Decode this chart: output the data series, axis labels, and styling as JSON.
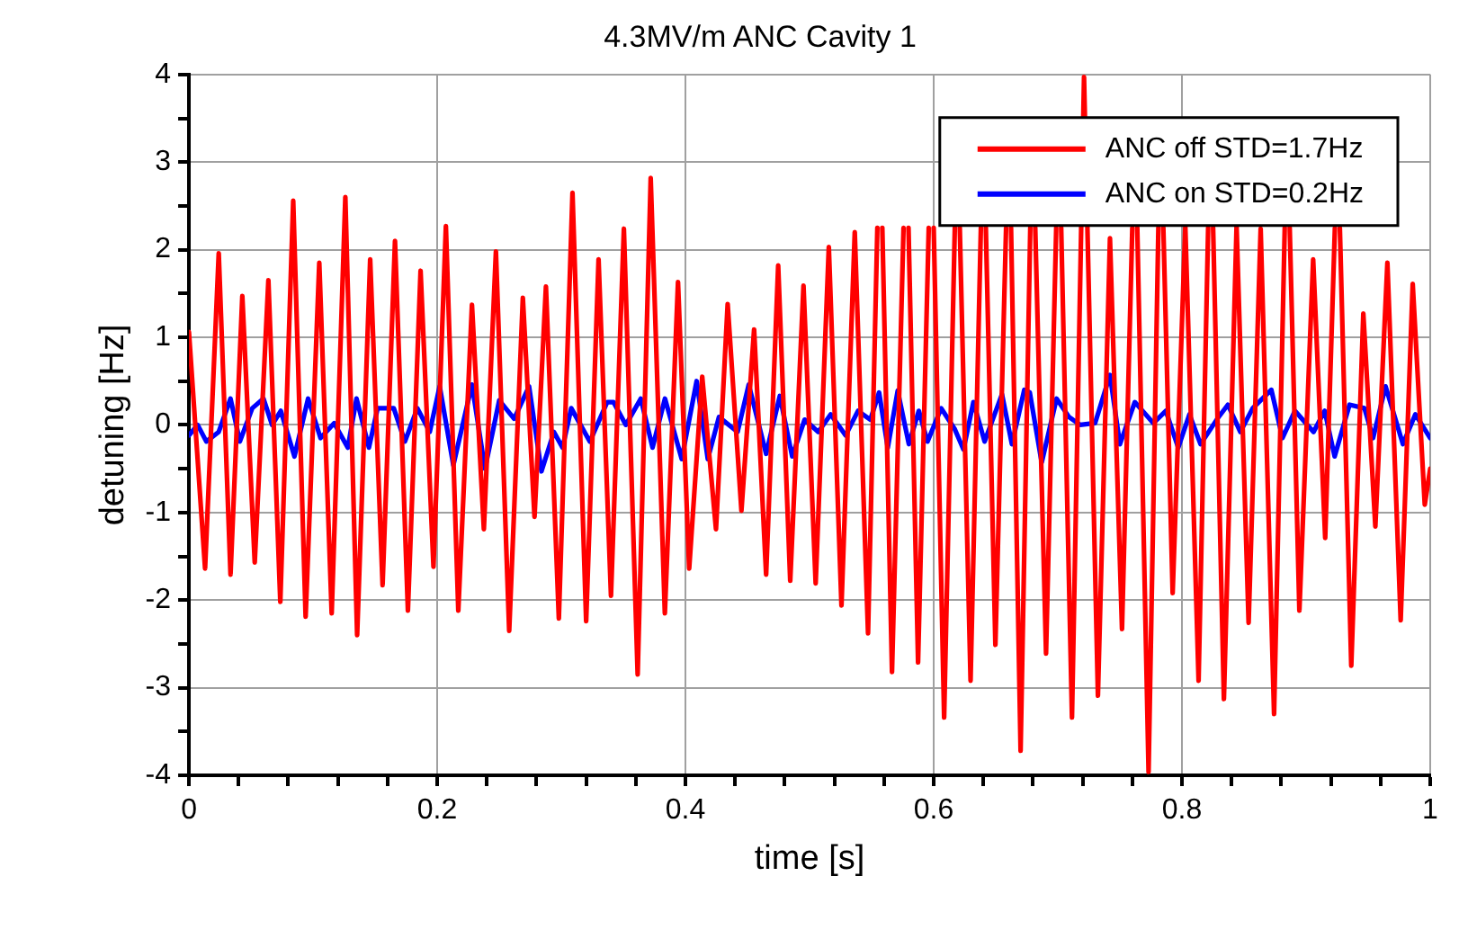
{
  "chart_data": {
    "type": "line",
    "title": "4.3MV/m ANC Cavity 1",
    "xlabel": "time [s]",
    "ylabel": "detuning [Hz]",
    "xlim": [
      0,
      1
    ],
    "ylim": [
      -4,
      4
    ],
    "xticks": [
      0,
      {
        "value": 0.04,
        "label": null
      },
      {
        "value": 0.08,
        "label": null
      },
      {
        "value": 0.12,
        "label": null
      },
      {
        "value": 0.16,
        "label": null
      },
      0.2,
      {
        "value": 0.24,
        "label": null
      },
      {
        "value": 0.28,
        "label": null
      },
      {
        "value": 0.32,
        "label": null
      },
      {
        "value": 0.36,
        "label": null
      },
      0.4,
      {
        "value": 0.44,
        "label": null
      },
      {
        "value": 0.48,
        "label": null
      },
      {
        "value": 0.52,
        "label": null
      },
      {
        "value": 0.56,
        "label": null
      },
      0.6,
      {
        "value": 0.64,
        "label": null
      },
      {
        "value": 0.68,
        "label": null
      },
      {
        "value": 0.72,
        "label": null
      },
      {
        "value": 0.76,
        "label": null
      },
      0.8,
      {
        "value": 0.84,
        "label": null
      },
      {
        "value": 0.88,
        "label": null
      },
      {
        "value": 0.92,
        "label": null
      },
      {
        "value": 0.96,
        "label": null
      },
      1
    ],
    "yticks": [
      -4,
      {
        "value": -3.5,
        "label": null
      },
      -3,
      {
        "value": -2.5,
        "label": null
      },
      -2,
      {
        "value": -1.5,
        "label": null
      },
      -1,
      {
        "value": -0.5,
        "label": null
      },
      0,
      {
        "value": 0.5,
        "label": null
      },
      1,
      {
        "value": 1.5,
        "label": null
      },
      2,
      {
        "value": 2.5,
        "label": null
      },
      3,
      {
        "value": 3.5,
        "label": null
      },
      4
    ],
    "grid": true,
    "legend": "top right",
    "marker": "none",
    "line_style": "solid",
    "series": [
      {
        "name": "ANC off STD=1.7Hz",
        "color": "#ff0000",
        "x": [
          0,
          0.013,
          0.024,
          0.0335,
          0.043,
          0.053,
          0.064,
          0.0736,
          0.084,
          0.094,
          0.105,
          0.115,
          0.126,
          0.1355,
          0.146,
          0.156,
          0.166,
          0.1764,
          0.1866,
          0.197,
          0.207,
          0.217,
          0.228,
          0.2376,
          0.2473,
          0.258,
          0.269,
          0.2784,
          0.2876,
          0.298,
          0.309,
          0.32,
          0.33,
          0.34,
          0.3504,
          0.3615,
          0.372,
          0.3834,
          0.394,
          0.403,
          0.4135,
          0.4246,
          0.434,
          0.4451,
          0.4553,
          0.465,
          0.4747,
          0.4844,
          0.4951,
          0.5049,
          0.5155,
          0.5257,
          0.5364,
          0.5471,
          0.5546,
          0.5566,
          0.5586,
          0.5664,
          0.5757,
          0.5777,
          0.5797,
          0.5874,
          0.596,
          0.598,
          0.6,
          0.6084,
          0.617,
          0.619,
          0.621,
          0.6297,
          0.638,
          0.64,
          0.642,
          0.6497,
          0.6583,
          0.6603,
          0.6623,
          0.67,
          0.6778,
          0.6798,
          0.6818,
          0.6905,
          0.6987,
          0.7007,
          0.7027,
          0.7114,
          0.7211,
          0.7323,
          0.742,
          0.7517,
          0.76,
          0.762,
          0.764,
          0.7731,
          0.781,
          0.783,
          0.785,
          0.7925,
          0.8027,
          0.8134,
          0.8211,
          0.8231,
          0.8251,
          0.8338,
          0.844,
          0.8537,
          0.8634,
          0.8742,
          0.8828,
          0.8848,
          0.8868,
          0.8946,
          0.9057,
          0.9154,
          0.9232,
          0.9252,
          0.9272,
          0.9364,
          0.9461,
          0.9558,
          0.9655,
          0.9762,
          0.9859,
          0.9956,
          1
        ],
        "values": [
          1.06,
          -1.64,
          1.96,
          -1.71,
          1.47,
          -1.57,
          1.65,
          -2.02,
          2.56,
          -2.19,
          1.85,
          -2.15,
          2.6,
          -2.4,
          1.89,
          -1.83,
          2.1,
          -2.12,
          1.76,
          -1.62,
          2.27,
          -2.12,
          1.37,
          -1.19,
          1.98,
          -2.35,
          1.45,
          -1.05,
          1.58,
          -2.21,
          2.65,
          -2.24,
          1.89,
          -1.95,
          2.24,
          -2.85,
          2.82,
          -2.15,
          1.63,
          -1.64,
          0.55,
          -1.19,
          1.38,
          -0.98,
          1.09,
          -1.71,
          1.82,
          -1.78,
          1.59,
          -1.81,
          2.03,
          -2.06,
          2.2,
          -2.38,
          2.25,
          null,
          2.25,
          -2.82,
          2.25,
          null,
          2.25,
          -2.71,
          2.25,
          null,
          2.25,
          -3.34,
          2.25,
          null,
          2.25,
          -2.92,
          2.25,
          null,
          2.25,
          -2.51,
          2.25,
          null,
          2.25,
          -3.72,
          2.25,
          null,
          2.25,
          -2.61,
          2.25,
          null,
          2.25,
          -3.34,
          3.97,
          -3.09,
          2.13,
          -2.33,
          2.25,
          null,
          2.25,
          -3.96,
          2.25,
          null,
          2.25,
          -1.92,
          2.27,
          -2.92,
          2.25,
          null,
          2.25,
          -3.13,
          2.27,
          -2.26,
          2.24,
          -3.3,
          2.25,
          null,
          2.25,
          -2.12,
          1.89,
          -1.29,
          2.25,
          null,
          2.25,
          -2.75,
          1.27,
          -1.16,
          1.85,
          -2.23,
          1.61,
          -0.91,
          -0.5
        ]
      },
      {
        "name": "ANC on STD=0.2Hz",
        "color": "#0000ff",
        "x": [
          0,
          0.007,
          0.014,
          0.024,
          0.0335,
          0.041,
          0.051,
          0.06,
          0.067,
          0.074,
          0.085,
          0.096,
          0.106,
          0.117,
          0.128,
          0.135,
          0.145,
          0.152,
          0.165,
          0.174,
          0.184,
          0.194,
          0.202,
          0.213,
          0.228,
          0.2385,
          0.25,
          0.262,
          0.274,
          0.284,
          0.294,
          0.301,
          0.308,
          0.323,
          0.337,
          0.342,
          0.352,
          0.364,
          0.3735,
          0.3835,
          0.397,
          0.409,
          0.418,
          0.427,
          0.442,
          0.451,
          0.465,
          0.476,
          0.486,
          0.496,
          0.507,
          0.517,
          0.529,
          0.539,
          0.549,
          0.556,
          0.563,
          0.571,
          0.58,
          0.588,
          0.595,
          0.606,
          0.617,
          0.624,
          0.632,
          0.641,
          0.655,
          0.663,
          0.673,
          0.6774,
          0.687,
          0.699,
          0.709,
          0.718,
          0.73,
          0.742,
          0.75,
          0.762,
          0.777,
          0.787,
          0.797,
          0.806,
          0.815,
          0.828,
          0.837,
          0.847,
          0.857,
          0.872,
          0.881,
          0.891,
          0.906,
          0.915,
          0.923,
          0.935,
          0.947,
          0.954,
          0.964,
          0.978,
          0.988,
          1
        ],
        "values": [
          -0.12,
          0,
          -0.19,
          -0.08,
          0.3,
          -0.19,
          0.19,
          0.3,
          0,
          0.16,
          -0.36,
          0.3,
          -0.15,
          0.02,
          -0.26,
          0.3,
          -0.26,
          0.19,
          0.19,
          -0.19,
          0.19,
          -0.08,
          0.44,
          -0.46,
          0.46,
          -0.5,
          0.28,
          0.07,
          0.44,
          -0.53,
          -0.08,
          -0.26,
          0.19,
          -0.19,
          0.26,
          0.26,
          0,
          0.3,
          -0.26,
          0.3,
          -0.39,
          0.5,
          -0.39,
          0.09,
          -0.08,
          0.46,
          -0.33,
          0.33,
          -0.36,
          0.06,
          -0.08,
          0.12,
          -0.12,
          0.16,
          0.06,
          0.37,
          -0.26,
          0.39,
          -0.22,
          0.16,
          -0.19,
          0.19,
          -0.05,
          -0.28,
          0.26,
          -0.19,
          0.35,
          -0.22,
          0.4,
          0.37,
          -0.43,
          0.3,
          0.09,
          0,
          0.02,
          0.57,
          -0.22,
          0.26,
          0.02,
          0.16,
          -0.26,
          0.12,
          -0.22,
          0.06,
          0.23,
          -0.08,
          0.19,
          0.4,
          -0.15,
          0.16,
          -0.08,
          0.16,
          -0.36,
          0.23,
          0.19,
          -0.15,
          0.44,
          -0.22,
          0.12,
          -0.15
        ]
      }
    ]
  }
}
